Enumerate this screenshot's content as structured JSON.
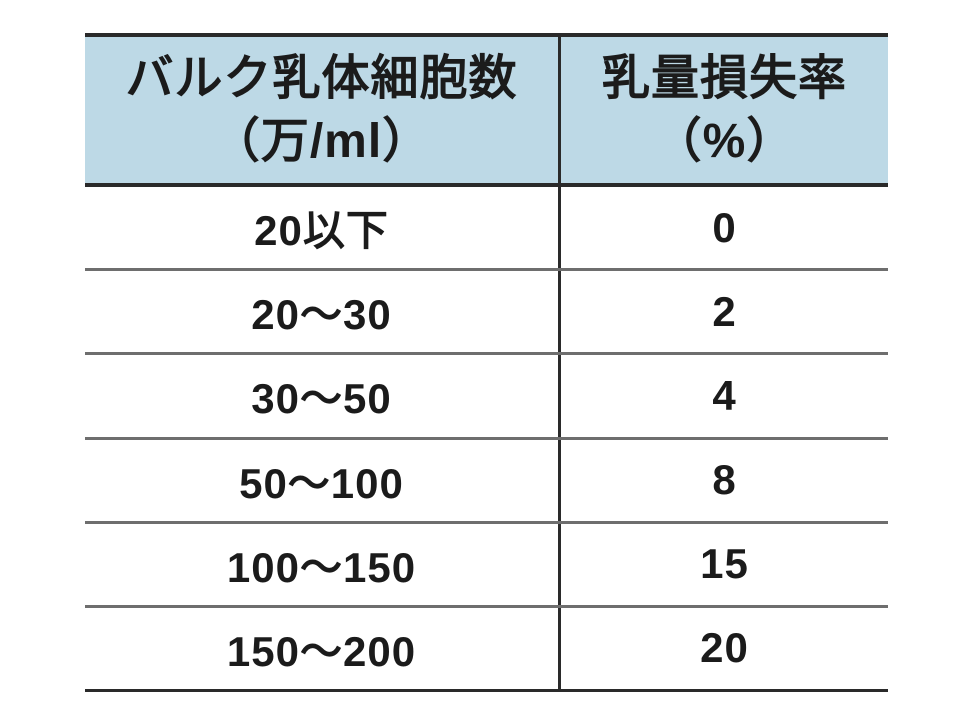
{
  "table": {
    "header": {
      "col1_line1": "バルク乳体細胞数",
      "col1_line2": "（万/ml）",
      "col2_line1": "乳量損失率",
      "col2_line2": "（%）"
    },
    "rows": [
      {
        "range": "20以下",
        "loss": "0"
      },
      {
        "range": "20～30",
        "loss": "2"
      },
      {
        "range": "30～50",
        "loss": "4"
      },
      {
        "range": "50～100",
        "loss": "8"
      },
      {
        "range": "100～150",
        "loss": "15"
      },
      {
        "range": "150～200",
        "loss": "20"
      }
    ]
  },
  "colors": {
    "header_bg": "#bdd9e6",
    "border_dark": "#2a2a2a",
    "border_gray": "#6e6e6e",
    "text": "#1b1b1b"
  },
  "chart_data": {
    "type": "table",
    "columns": [
      "バルク乳体細胞数（万/ml）",
      "乳量損失率（%）"
    ],
    "rows": [
      [
        "20以下",
        0
      ],
      [
        "20～30",
        2
      ],
      [
        "30～50",
        4
      ],
      [
        "50～100",
        8
      ],
      [
        "100～150",
        15
      ],
      [
        "150～200",
        20
      ]
    ],
    "layout_hints": {
      "header_background": "#bdd9e6",
      "outer_borders": "horizontal only (top and bottom), dark",
      "inner_row_rules": "gray",
      "column_divider": "single dark vertical rule between the two columns"
    }
  }
}
